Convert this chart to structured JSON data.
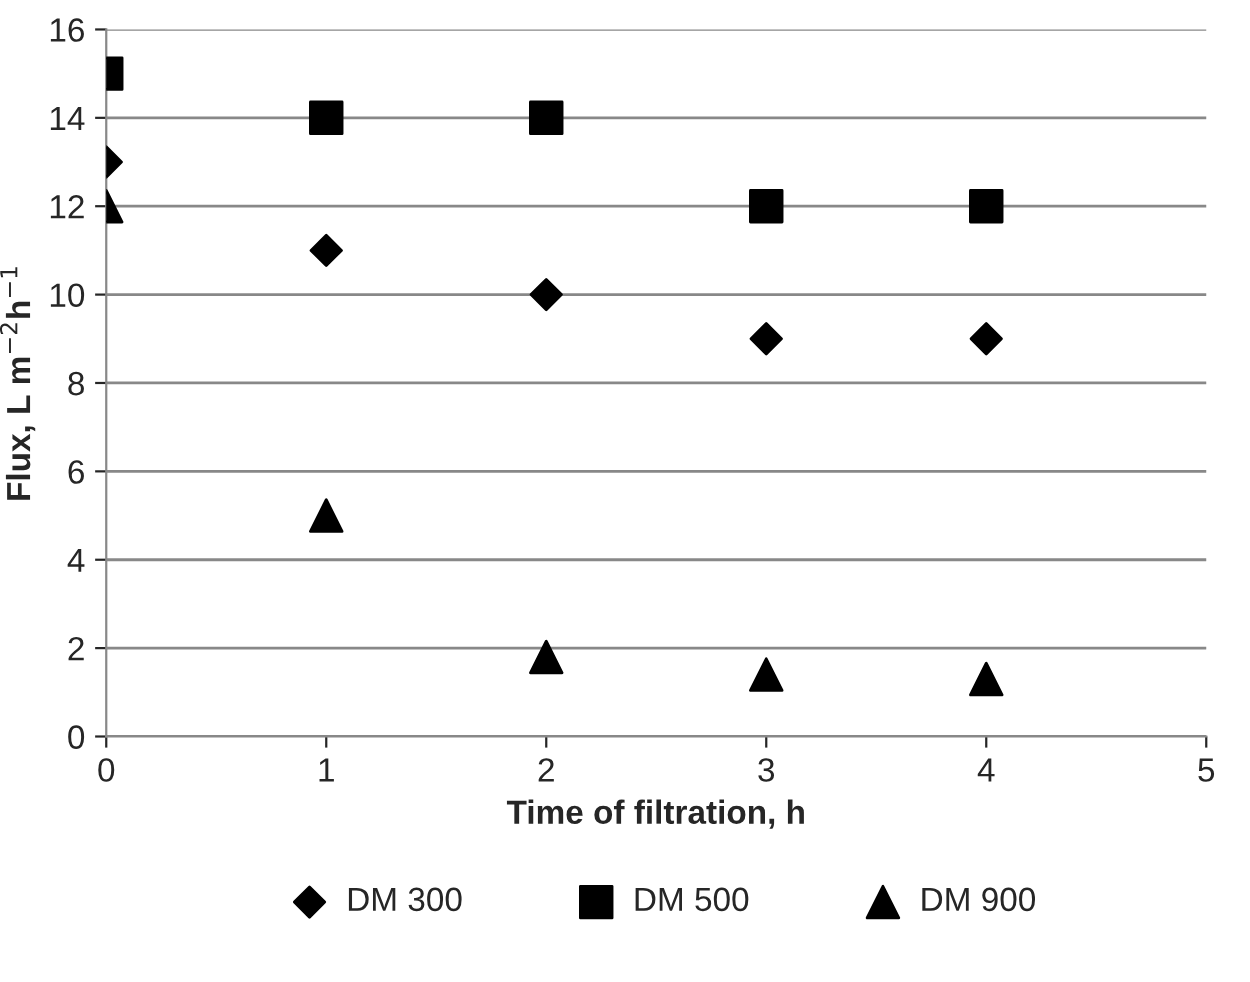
{
  "chart_data": {
    "type": "scatter",
    "xlabel": "Time of filtration, h",
    "ylabel": "Flux, L m$^{−2}$h$^{−1}$",
    "x": [
      0,
      1,
      2,
      3,
      4
    ],
    "series": [
      {
        "name": "DM 300",
        "color": "#000000",
        "marker": "diamond",
        "values": [
          13,
          11,
          10,
          9,
          9
        ]
      },
      {
        "name": "DM 500",
        "color": "#000000",
        "marker": "square",
        "values": [
          15,
          14,
          14,
          12,
          12
        ]
      },
      {
        "name": "DM 900",
        "color": "#000000",
        "marker": "triangle",
        "values": [
          12,
          5,
          1.8,
          1.4,
          1.3
        ]
      }
    ],
    "xlim": [
      0,
      5
    ],
    "xticks": [
      0,
      1,
      2,
      3,
      4,
      5
    ],
    "ylim": [
      0,
      16
    ],
    "yticks": [
      0,
      2,
      4,
      6,
      8,
      10,
      12,
      14,
      16
    ],
    "grid": "y",
    "legend": "bottom"
  }
}
